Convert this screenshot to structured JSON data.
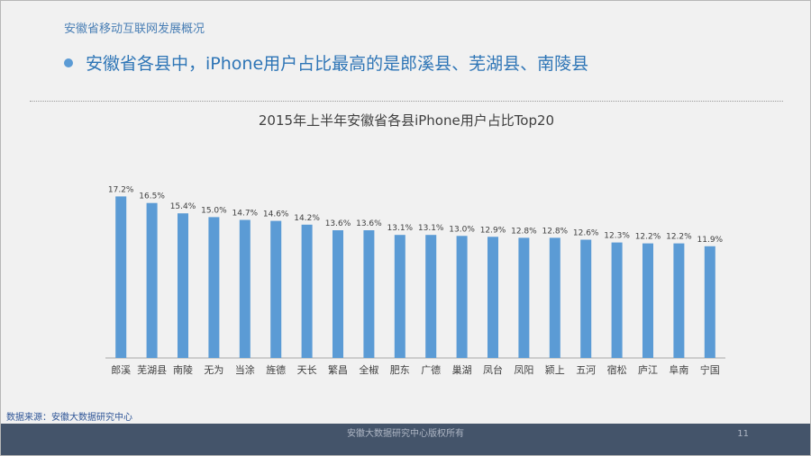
{
  "header": {
    "section_title": "安徽省移动互联网发展概况",
    "headline": "安徽省各县中，iPhone用户占比最高的是郎溪县、芜湖县、南陵县"
  },
  "chart_data": {
    "type": "bar",
    "title": "2015年上半年安徽省各县iPhone用户占比Top20",
    "xlabel": "",
    "ylabel": "",
    "categories": [
      "郎溪",
      "芜湖县",
      "南陵",
      "无为",
      "当涂",
      "旌德",
      "天长",
      "繁昌",
      "全椒",
      "肥东",
      "广德",
      "巢湖",
      "凤台",
      "凤阳",
      "颍上",
      "五河",
      "宿松",
      "庐江",
      "阜南",
      "宁国"
    ],
    "values": [
      17.2,
      16.5,
      15.4,
      15.0,
      14.7,
      14.6,
      14.2,
      13.6,
      13.6,
      13.1,
      13.1,
      13.0,
      12.9,
      12.8,
      12.8,
      12.6,
      12.3,
      12.2,
      12.2,
      11.9
    ],
    "data_labels": [
      "17.2%",
      "16.5%",
      "15.4%",
      "15.0%",
      "14.7%",
      "14.6%",
      "14.2%",
      "13.6%",
      "13.6%",
      "13.1%",
      "13.1%",
      "13.0%",
      "12.9%",
      "12.8%",
      "12.8%",
      "12.6%",
      "12.3%",
      "12.2%",
      "12.2%",
      "11.9%"
    ],
    "ylim": [
      0,
      18.2
    ],
    "grid": false,
    "legend": "none",
    "bar_color": "#5b9bd5"
  },
  "source": "数据来源：安徽大数据研究中心",
  "footer": {
    "copyright": "安徽大数据研究中心版权所有",
    "page_number": "11"
  }
}
